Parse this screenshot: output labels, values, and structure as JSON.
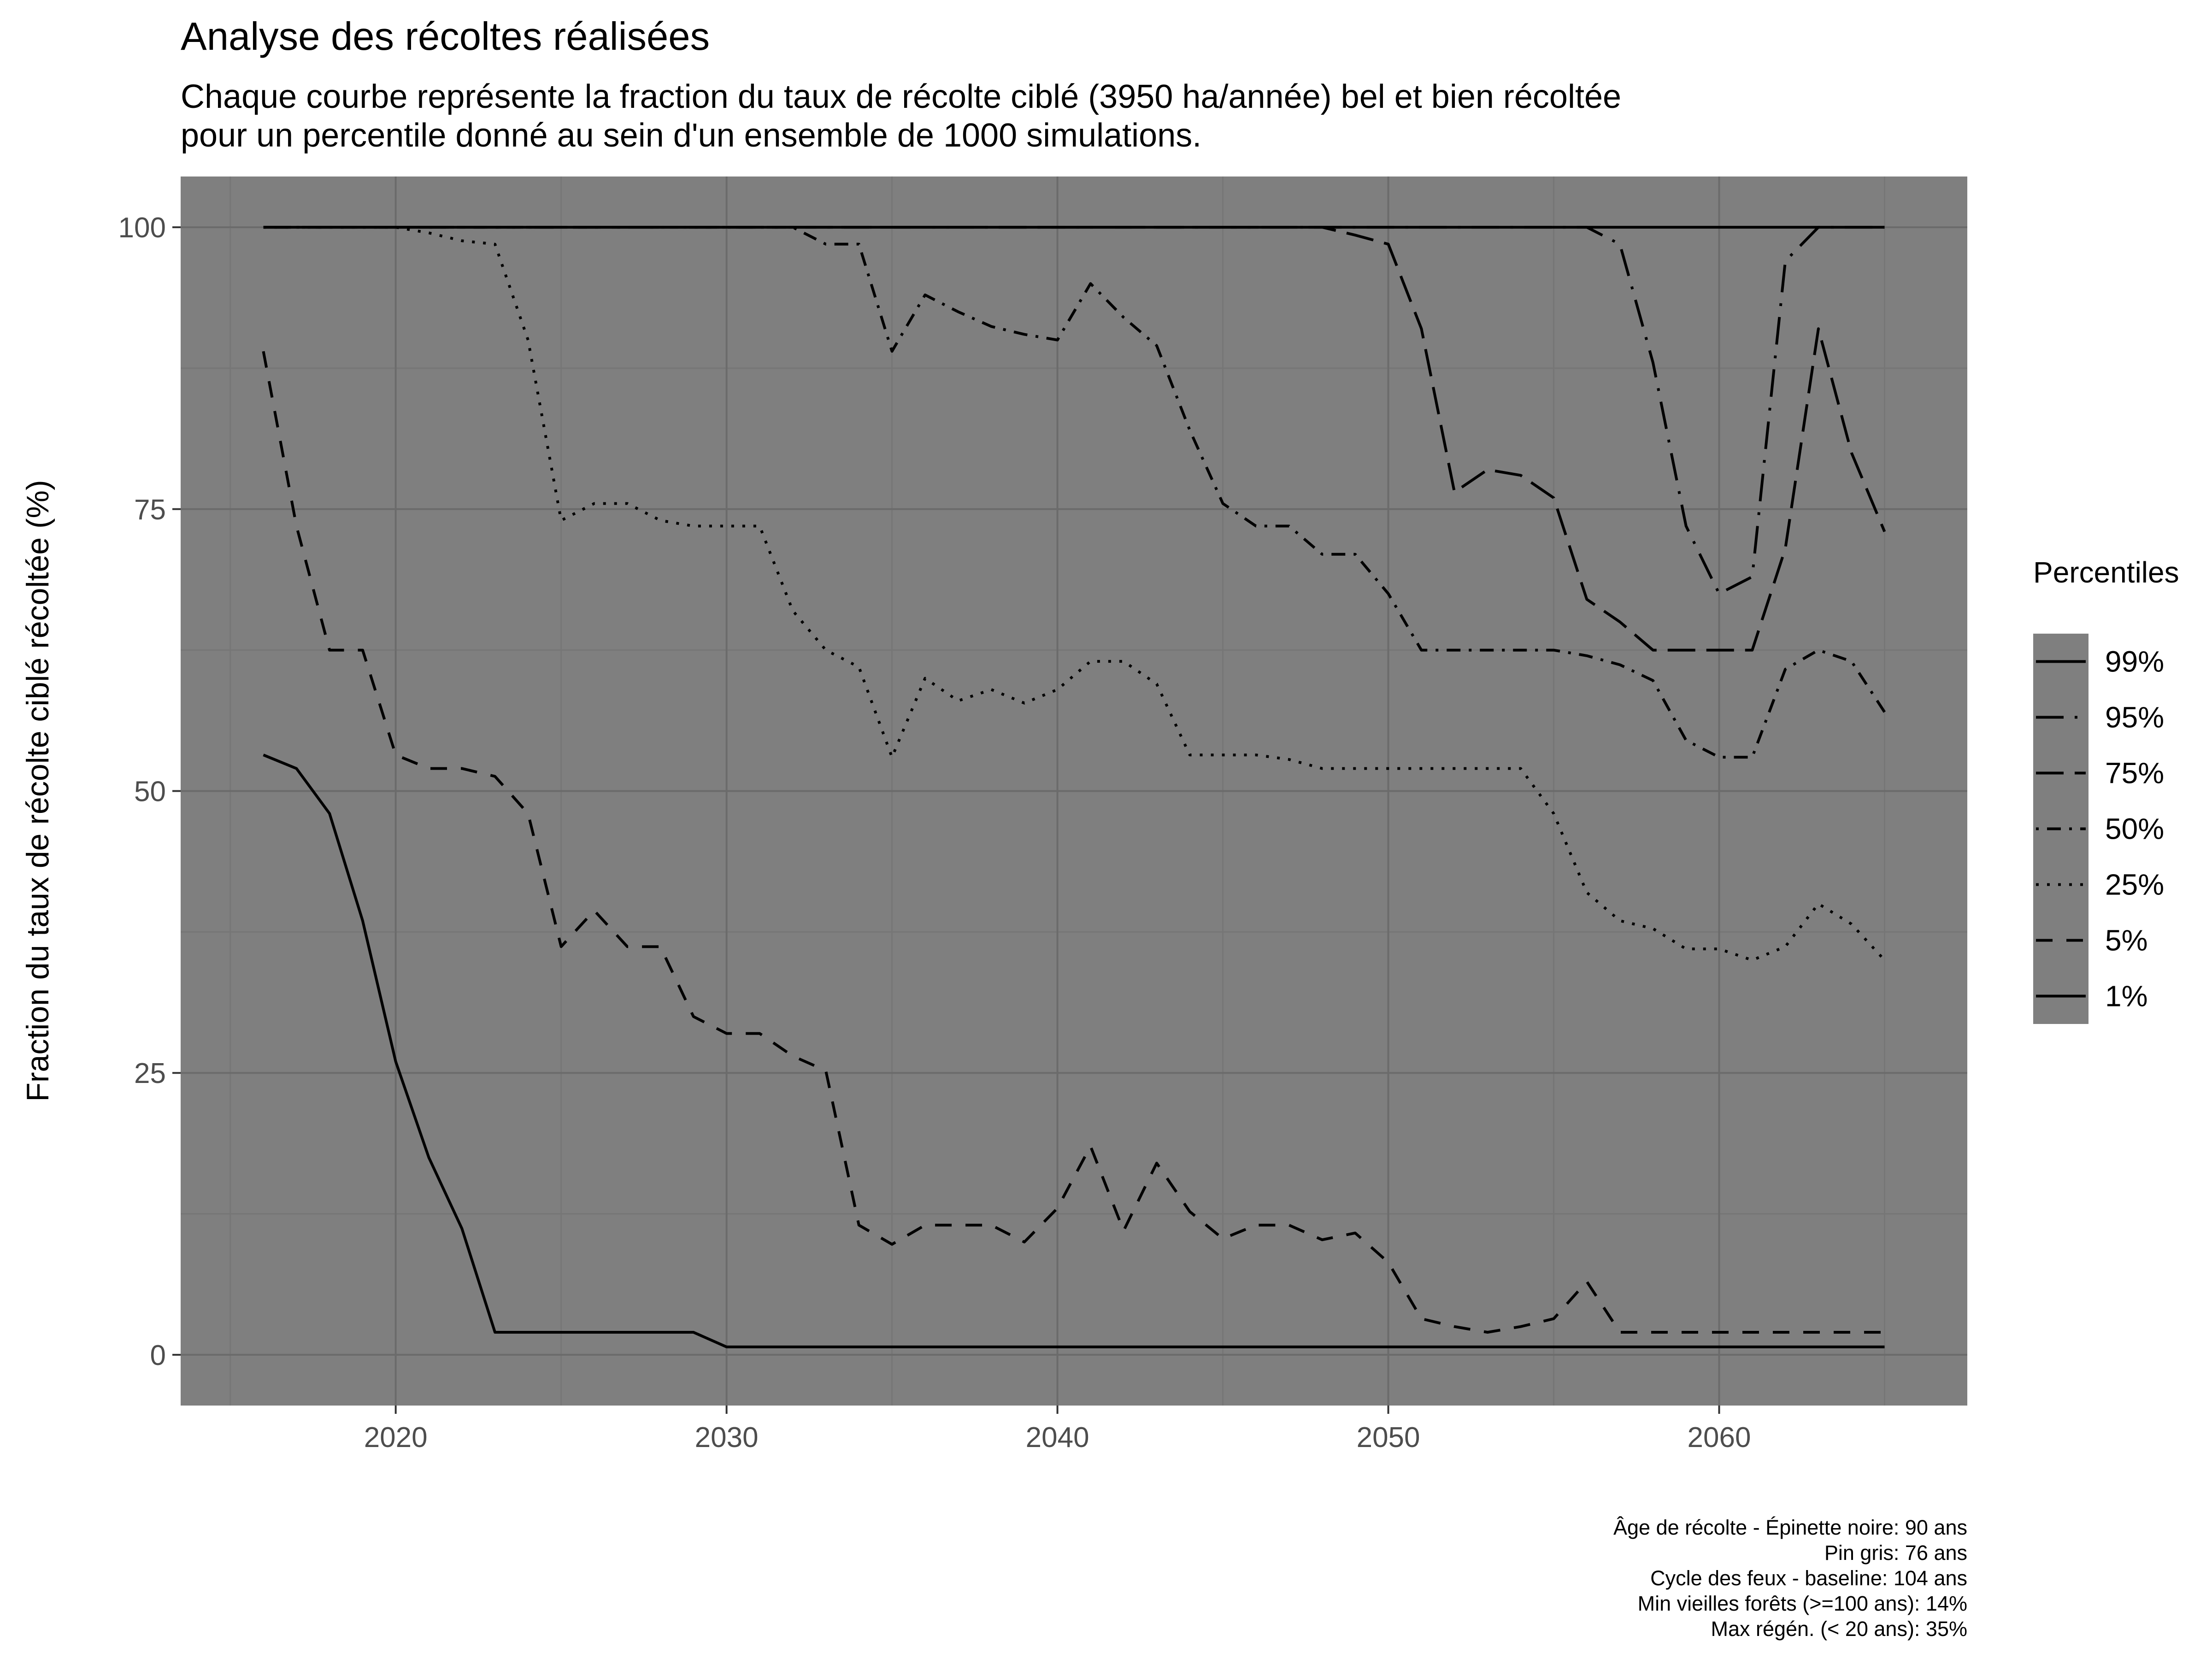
{
  "chart_data": {
    "type": "line",
    "title": "Analyse des récoltes réalisées",
    "subtitle": [
      "Chaque courbe représente la fraction du taux de récolte ciblé (3950 ha/année) bel et bien récoltée",
      "pour un percentile donné au sein d'un ensemble de 1000 simulations."
    ],
    "xlabel": "",
    "ylabel": "Fraction du taux de récolte ciblé récoltée (%)",
    "xlim": [
      2013.5,
      2067.5
    ],
    "ylim": [
      -4.5,
      104.5
    ],
    "x_ticks": [
      2020,
      2030,
      2040,
      2050,
      2060
    ],
    "x_tick_labels": [
      "2020",
      "2030",
      "2040",
      "2050",
      "2060"
    ],
    "y_ticks": [
      0,
      25,
      50,
      75,
      100
    ],
    "y_tick_labels": [
      "0",
      "25",
      "50",
      "75",
      "100"
    ],
    "grid": true,
    "legend": {
      "title": "Percentiles",
      "position": "right"
    },
    "x": [
      2016,
      2017,
      2018,
      2019,
      2020,
      2021,
      2022,
      2023,
      2024,
      2025,
      2026,
      2027,
      2028,
      2029,
      2030,
      2031,
      2032,
      2033,
      2034,
      2035,
      2036,
      2037,
      2038,
      2039,
      2040,
      2041,
      2042,
      2043,
      2044,
      2045,
      2046,
      2047,
      2048,
      2049,
      2050,
      2051,
      2052,
      2053,
      2054,
      2055,
      2056,
      2057,
      2058,
      2059,
      2060,
      2061,
      2062,
      2063,
      2064,
      2065
    ],
    "series": [
      {
        "name": "99%",
        "dash": "solid",
        "values": [
          100,
          100,
          100,
          100,
          100,
          100,
          100,
          100,
          100,
          100,
          100,
          100,
          100,
          100,
          100,
          100,
          100,
          100,
          100,
          100,
          100,
          100,
          100,
          100,
          100,
          100,
          100,
          100,
          100,
          100,
          100,
          100,
          100,
          100,
          100,
          100,
          100,
          100,
          100,
          100,
          100,
          100,
          100,
          100,
          100,
          100,
          100,
          100,
          100,
          100
        ]
      },
      {
        "name": "95%",
        "dash": "dashdot-long",
        "values": [
          100,
          100,
          100,
          100,
          100,
          100,
          100,
          100,
          100,
          100,
          100,
          100,
          100,
          100,
          100,
          100,
          100,
          100,
          100,
          100,
          100,
          100,
          100,
          100,
          100,
          100,
          100,
          100,
          100,
          100,
          100,
          100,
          100,
          100,
          100,
          100,
          100,
          100,
          100,
          100,
          100,
          98.5,
          88,
          73.5,
          67.5,
          69,
          97,
          100,
          100,
          100
        ]
      },
      {
        "name": "75%",
        "dash": "longdash",
        "values": [
          100,
          100,
          100,
          100,
          100,
          100,
          100,
          100,
          100,
          100,
          100,
          100,
          100,
          100,
          100,
          100,
          100,
          100,
          100,
          100,
          100,
          100,
          100,
          100,
          100,
          100,
          100,
          100,
          100,
          100,
          100,
          100,
          100,
          99.3,
          98.5,
          91,
          76.5,
          78.5,
          78,
          76,
          67,
          65,
          62.5,
          62.5,
          62.5,
          62.5,
          71.5,
          91,
          80,
          73
        ]
      },
      {
        "name": "50%",
        "dash": "dashdot",
        "values": [
          100,
          100,
          100,
          100,
          100,
          100,
          100,
          100,
          100,
          100,
          100,
          100,
          100,
          100,
          100,
          100,
          100,
          98.5,
          98.5,
          89,
          94,
          92.5,
          91.2,
          90.5,
          90,
          95,
          92,
          89.5,
          82,
          75.5,
          73.5,
          73.5,
          71,
          71,
          67.5,
          62.5,
          62.5,
          62.5,
          62.5,
          62.5,
          62,
          61.2,
          59.8,
          54.5,
          53,
          53,
          60.8,
          62.5,
          61.5,
          57
        ]
      },
      {
        "name": "25%",
        "dash": "dotted",
        "values": [
          100,
          100,
          100,
          100,
          100,
          99.5,
          98.8,
          98.5,
          90,
          74,
          75.5,
          75.5,
          74,
          73.5,
          73.5,
          73.5,
          66,
          62.5,
          61,
          53,
          60,
          58,
          59,
          57.8,
          59,
          61.5,
          61.5,
          59.5,
          53.2,
          53.2,
          53.2,
          52.8,
          52,
          52,
          52,
          52,
          52,
          52,
          52,
          48,
          41,
          38.5,
          37.8,
          36,
          36,
          35,
          36.2,
          40,
          38.2,
          35
        ]
      },
      {
        "name": "5%",
        "dash": "dashed",
        "values": [
          89,
          73.5,
          62.5,
          62.5,
          53.2,
          52,
          52,
          51.3,
          48,
          36.2,
          39.4,
          36.2,
          36.2,
          30,
          28.5,
          28.5,
          26.5,
          25.2,
          11.5,
          9.8,
          11.5,
          11.5,
          11.5,
          10,
          13,
          18.5,
          11,
          17,
          12.7,
          10.3,
          11.5,
          11.5,
          10.2,
          10.8,
          8.2,
          3.2,
          2.5,
          2,
          2.5,
          3.2,
          6.5,
          2,
          2,
          2,
          2,
          2,
          2,
          2,
          2,
          2
        ]
      },
      {
        "name": "1%",
        "dash": "solid",
        "values": [
          53.2,
          52,
          48,
          38.5,
          26,
          17.5,
          11.2,
          2,
          2,
          2,
          2,
          2,
          2,
          2,
          0.7,
          0.7,
          0.7,
          0.7,
          0.7,
          0.7,
          0.7,
          0.7,
          0.7,
          0.7,
          0.7,
          0.7,
          0.7,
          0.7,
          0.7,
          0.7,
          0.7,
          0.7,
          0.7,
          0.7,
          0.7,
          0.7,
          0.7,
          0.7,
          0.7,
          0.7,
          0.7,
          0.7,
          0.7,
          0.7,
          0.7,
          0.7,
          0.7,
          0.7,
          0.7,
          0.7
        ]
      }
    ],
    "caption": [
      "Âge de récolte - Épinette noire: 90 ans",
      "Pin gris: 76 ans",
      "Cycle des feux - baseline: 104 ans",
      "Min vieilles forêts (>=100 ans): 14%",
      "Max régén. (< 20 ans): 35%"
    ],
    "colors": {
      "panel": "#7f7f7f",
      "grid_major": "#6b6b6b",
      "grid_minor": "#767676",
      "line": "#000000",
      "tick_text": "#4d4d4d"
    }
  }
}
